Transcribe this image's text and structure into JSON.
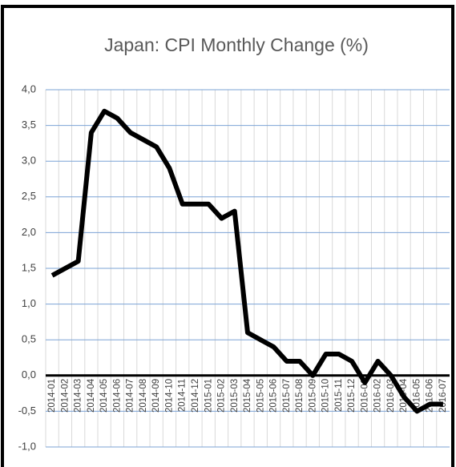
{
  "chart_data": {
    "type": "line",
    "title": "Japan: CPI Monthly Change (%)",
    "categories": [
      "2014-01",
      "2014-02",
      "2014-03",
      "2014-04",
      "2014-05",
      "2014-06",
      "2014-07",
      "2014-08",
      "2014-09",
      "2014-10",
      "2014-11",
      "2014-12",
      "2015-01",
      "2015-02",
      "2015-03",
      "2015-04",
      "2015-05",
      "2015-06",
      "2015-07",
      "2015-08",
      "2015-09",
      "2015-10",
      "2015-11",
      "2015-12",
      "2016-01",
      "2016-02",
      "2016-03",
      "2016-04",
      "2016-05",
      "2016-06",
      "2016-07"
    ],
    "series": [
      {
        "color": "#000000",
        "values": [
          1.4,
          1.5,
          1.6,
          3.4,
          3.7,
          3.6,
          3.4,
          3.3,
          3.2,
          2.9,
          2.4,
          2.4,
          2.4,
          2.2,
          2.3,
          0.6,
          0.5,
          0.4,
          0.2,
          0.2,
          0.0,
          0.3,
          0.3,
          0.2,
          -0.1,
          0.2,
          0.0,
          -0.3,
          -0.5,
          -0.4,
          -0.4
        ]
      }
    ],
    "ylim": [
      -1,
      4
    ],
    "yticks": [
      {
        "value": -1,
        "label": "-1,0"
      },
      {
        "value": -0.5,
        "label": "-0,5"
      },
      {
        "value": 0,
        "label": "0,0"
      },
      {
        "value": 0.5,
        "label": "0,5"
      },
      {
        "value": 1,
        "label": "1,0"
      },
      {
        "value": 1.5,
        "label": "1,5"
      },
      {
        "value": 2,
        "label": "2,0"
      },
      {
        "value": 2.5,
        "label": "2,5"
      },
      {
        "value": 3,
        "label": "3,0"
      },
      {
        "value": 3.5,
        "label": "3,5"
      },
      {
        "value": 4,
        "label": "4,0"
      }
    ],
    "grid": true
  }
}
